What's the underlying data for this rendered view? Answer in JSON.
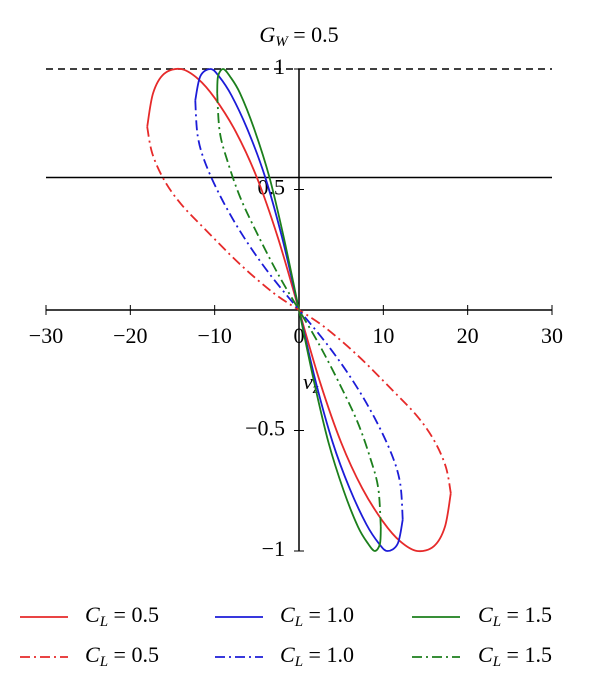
{
  "chart_data": {
    "type": "line",
    "title": "GW = 0.5",
    "y_label": "νz",
    "xlim": [
      -30,
      30
    ],
    "ylim": [
      -1,
      1
    ],
    "xticks": [
      {
        "value": -30,
        "label": "−30"
      },
      {
        "value": -20,
        "label": "−20"
      },
      {
        "value": -10,
        "label": "−10"
      },
      0,
      10,
      20,
      30
    ],
    "yticks": [
      {
        "value": -1,
        "label": "−1"
      },
      {
        "value": -0.5,
        "label": "−0.5"
      },
      0.5,
      1
    ],
    "reference_lines": [
      {
        "y": 1,
        "dash": "dashed"
      },
      {
        "y": 0.55,
        "dash": "solid"
      }
    ],
    "series": [
      {
        "name": "CL = 0.5",
        "color": "#e62a2a",
        "dash": "solid",
        "x": [
          0,
          -2.5,
          -5,
          -7.5,
          -10,
          -12,
          -14,
          -16,
          -17.3,
          -18,
          null,
          0,
          2.5,
          5,
          7.5,
          10,
          12,
          14,
          16,
          17.3,
          18
        ],
        "values": [
          0,
          0.3,
          0.55,
          0.74,
          0.88,
          0.96,
          1,
          0.98,
          0.9,
          0.76,
          null,
          0,
          -0.3,
          -0.55,
          -0.74,
          -0.88,
          -0.96,
          -1,
          -0.98,
          -0.9,
          -0.76
        ]
      },
      {
        "name": "CL = 1.0",
        "color": "#1c1cd8",
        "dash": "solid",
        "x": [
          0,
          -2,
          -4,
          -6,
          -8,
          -9.5,
          -10.5,
          -11.7,
          -12.3,
          null,
          0,
          2,
          4,
          6,
          8,
          9.5,
          10.5,
          11.7,
          12.3
        ],
        "values": [
          0,
          0.3,
          0.55,
          0.74,
          0.89,
          0.97,
          1,
          0.97,
          0.87,
          null,
          0,
          -0.3,
          -0.55,
          -0.74,
          -0.89,
          -0.97,
          -1,
          -0.97,
          -0.87
        ]
      },
      {
        "name": "CL = 1.5",
        "color": "#1c7f1c",
        "dash": "solid",
        "x": [
          0,
          -1.8,
          -3.5,
          -5.3,
          -7,
          -8.2,
          -9,
          -9.6,
          -9.7,
          null,
          0,
          1.8,
          3.5,
          5.3,
          7,
          8.2,
          9,
          9.6,
          9.7
        ],
        "values": [
          0,
          0.3,
          0.55,
          0.75,
          0.9,
          0.97,
          1,
          0.97,
          0.9,
          null,
          0,
          -0.3,
          -0.55,
          -0.75,
          -0.9,
          -0.97,
          -1,
          -0.97,
          -0.9
        ]
      },
      {
        "name": "CL = 0.5",
        "color": "#e62a2a",
        "dash": "dashdot",
        "x": [
          -18,
          -17.4,
          -16,
          -14,
          -11,
          -7,
          -3,
          0,
          null,
          18,
          17.4,
          16,
          14,
          11,
          7,
          3,
          0
        ],
        "values": [
          0.76,
          0.65,
          0.54,
          0.44,
          0.33,
          0.19,
          0.07,
          0,
          null,
          -0.76,
          -0.65,
          -0.54,
          -0.44,
          -0.33,
          -0.19,
          -0.07,
          0
        ]
      },
      {
        "name": "CL = 1.0",
        "color": "#1c1cd8",
        "dash": "dashdot",
        "x": [
          -12.3,
          -12,
          -11,
          -9,
          -6.5,
          -3.5,
          0,
          null,
          12.3,
          12,
          11,
          9,
          6.5,
          3.5,
          0
        ],
        "values": [
          0.87,
          0.72,
          0.6,
          0.45,
          0.3,
          0.15,
          0,
          null,
          -0.87,
          -0.72,
          -0.6,
          -0.45,
          -0.3,
          -0.15,
          0
        ]
      },
      {
        "name": "CL = 1.5",
        "color": "#1c7f1c",
        "dash": "dashdot",
        "x": [
          -9.7,
          -9.4,
          -8.5,
          -7,
          -5,
          -2.5,
          0,
          null,
          9.7,
          9.4,
          8.5,
          7,
          5,
          2.5,
          0
        ],
        "values": [
          0.9,
          0.74,
          0.62,
          0.47,
          0.32,
          0.15,
          0,
          null,
          -0.9,
          -0.74,
          -0.62,
          -0.47,
          -0.32,
          -0.15,
          0
        ]
      }
    ]
  }
}
